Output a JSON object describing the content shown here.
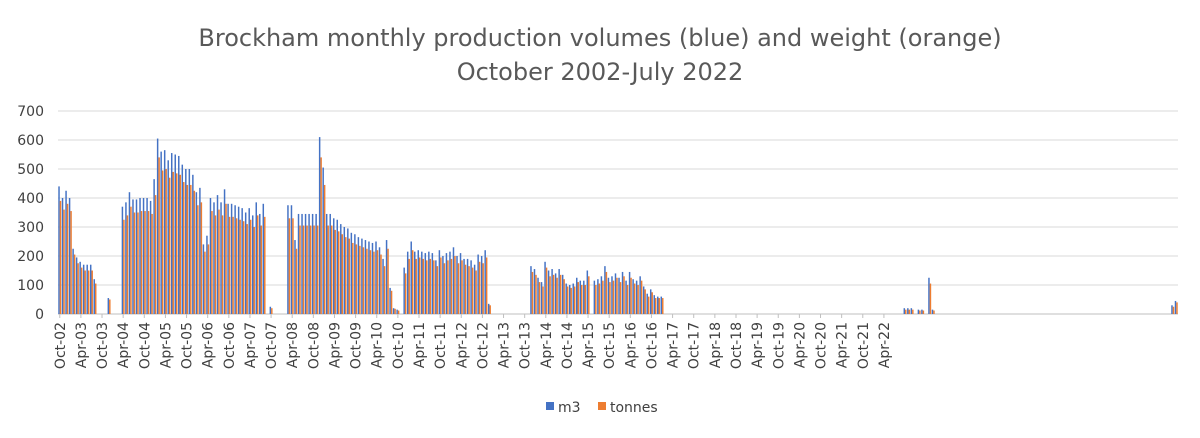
{
  "chart_data": {
    "type": "bar",
    "title": "Brockham monthly production volumes (blue) and weight (orange)",
    "subtitle": "October 2002-July 2022",
    "ylim": [
      0,
      700
    ],
    "yticks": [
      0,
      100,
      200,
      300,
      400,
      500,
      600,
      700
    ],
    "x_start": "Oct-02",
    "x_tick_labels": [
      "Oct-02",
      "Apr-03",
      "Oct-03",
      "Apr-04",
      "Oct-04",
      "Apr-05",
      "Oct-05",
      "Apr-06",
      "Oct-06",
      "Apr-07",
      "Oct-07",
      "Apr-08",
      "Oct-08",
      "Apr-09",
      "Oct-09",
      "Apr-10",
      "Oct-10",
      "Apr-11",
      "Oct-11",
      "Apr-12",
      "Oct-12",
      "Apr-13",
      "Oct-13",
      "Apr-14",
      "Oct-14",
      "Apr-15",
      "Oct-15",
      "Apr-16",
      "Oct-16",
      "Apr-17",
      "Oct-17",
      "Apr-18",
      "Oct-18",
      "Apr-19",
      "Oct-19",
      "Apr-20",
      "Oct-20",
      "Apr-21",
      "Oct-21",
      "Apr-22"
    ],
    "grid": true,
    "legend_position": "bottom",
    "colors": {
      "m3": "#4472C4",
      "tonnes": "#ED7D31",
      "grid": "#d9d9d9",
      "axis": "#bfbfbf"
    },
    "series": [
      {
        "name": "m3",
        "values": [
          440,
          400,
          425,
          400,
          225,
          195,
          180,
          170,
          170,
          170,
          120,
          0,
          0,
          0,
          55,
          0,
          0,
          0,
          370,
          385,
          420,
          395,
          395,
          400,
          400,
          400,
          390,
          465,
          605,
          560,
          565,
          530,
          555,
          550,
          545,
          515,
          500,
          500,
          480,
          420,
          435,
          240,
          270,
          400,
          385,
          410,
          385,
          430,
          380,
          380,
          375,
          370,
          365,
          350,
          365,
          340,
          385,
          345,
          380,
          0,
          25,
          0,
          0,
          0,
          0,
          375,
          375,
          255,
          345,
          345,
          345,
          345,
          345,
          345,
          610,
          505,
          345,
          345,
          330,
          325,
          310,
          300,
          295,
          280,
          275,
          265,
          260,
          255,
          250,
          245,
          250,
          230,
          190,
          255,
          90,
          20,
          15,
          0,
          160,
          215,
          250,
          215,
          220,
          215,
          210,
          215,
          210,
          185,
          220,
          200,
          210,
          215,
          230,
          200,
          210,
          190,
          190,
          185,
          170,
          205,
          200,
          220,
          35,
          0,
          0,
          0,
          0,
          0,
          0,
          0,
          0,
          0,
          0,
          0,
          165,
          155,
          125,
          110,
          180,
          150,
          155,
          140,
          155,
          135,
          105,
          100,
          105,
          125,
          115,
          115,
          150,
          0,
          115,
          120,
          130,
          165,
          125,
          130,
          140,
          125,
          145,
          115,
          145,
          120,
          115,
          130,
          95,
          70,
          85,
          65,
          60,
          60,
          0,
          0,
          0,
          0,
          0,
          0,
          0,
          0,
          0,
          0,
          0,
          0,
          0,
          0,
          0,
          0,
          0,
          0,
          0,
          0,
          0,
          0,
          0,
          0,
          0,
          0,
          0,
          0,
          0,
          0,
          0,
          0,
          0,
          0,
          0,
          0,
          0,
          0,
          0,
          0,
          0,
          0,
          0,
          0,
          0,
          0,
          0,
          0,
          0,
          0,
          0,
          0,
          0,
          0,
          0,
          0,
          0,
          0,
          0,
          0,
          0,
          0,
          0,
          0,
          0,
          0,
          0,
          0,
          20,
          20,
          20,
          0,
          15,
          15,
          0,
          125,
          15,
          0,
          0,
          0,
          0,
          0,
          0,
          0,
          0,
          0,
          0,
          0,
          0,
          0,
          0,
          0,
          0,
          0,
          0,
          0,
          0,
          0,
          0,
          0,
          0,
          0,
          0,
          0,
          0,
          0,
          0,
          0,
          0,
          0,
          0,
          0,
          0,
          0,
          0,
          0,
          0,
          0,
          0,
          0,
          0,
          0,
          0,
          0,
          0,
          0,
          0,
          0,
          0,
          0,
          0,
          0,
          0,
          0,
          0,
          0,
          0,
          0,
          0,
          0,
          0,
          0,
          0,
          0,
          30,
          45
        ],
        "tonnes_ratio_note": ""
      },
      {
        "name": "tonnes",
        "values": [
          390,
          360,
          380,
          355,
          205,
          175,
          160,
          150,
          150,
          150,
          105,
          0,
          0,
          0,
          50,
          0,
          0,
          0,
          325,
          340,
          370,
          350,
          350,
          355,
          355,
          355,
          345,
          410,
          540,
          495,
          500,
          470,
          490,
          485,
          480,
          455,
          445,
          445,
          425,
          375,
          385,
          215,
          240,
          355,
          340,
          360,
          340,
          380,
          335,
          335,
          330,
          325,
          320,
          310,
          325,
          300,
          340,
          305,
          335,
          0,
          20,
          0,
          0,
          0,
          0,
          330,
          330,
          225,
          305,
          305,
          305,
          305,
          305,
          305,
          540,
          445,
          305,
          305,
          290,
          285,
          275,
          265,
          260,
          245,
          240,
          235,
          230,
          225,
          220,
          215,
          220,
          205,
          165,
          225,
          80,
          18,
          12,
          0,
          140,
          190,
          220,
          190,
          195,
          190,
          185,
          190,
          185,
          165,
          195,
          175,
          185,
          190,
          200,
          175,
          185,
          170,
          165,
          160,
          150,
          180,
          175,
          195,
          30,
          0,
          0,
          0,
          0,
          0,
          0,
          0,
          0,
          0,
          0,
          0,
          145,
          135,
          110,
          95,
          160,
          130,
          135,
          125,
          135,
          120,
          95,
          90,
          95,
          110,
          100,
          100,
          130,
          0,
          100,
          105,
          115,
          145,
          110,
          115,
          125,
          110,
          130,
          100,
          125,
          105,
          100,
          115,
          85,
          60,
          75,
          55,
          55,
          55,
          0,
          0,
          0,
          0,
          0,
          0,
          0,
          0,
          0,
          0,
          0,
          0,
          0,
          0,
          0,
          0,
          0,
          0,
          0,
          0,
          0,
          0,
          0,
          0,
          0,
          0,
          0,
          0,
          0,
          0,
          0,
          0,
          0,
          0,
          0,
          0,
          0,
          0,
          0,
          0,
          0,
          0,
          0,
          0,
          0,
          0,
          0,
          0,
          0,
          0,
          0,
          0,
          0,
          0,
          0,
          0,
          0,
          0,
          0,
          0,
          0,
          0,
          0,
          0,
          0,
          0,
          0,
          0,
          15,
          15,
          15,
          0,
          12,
          12,
          0,
          105,
          12,
          0,
          0,
          0,
          0,
          0,
          0,
          0,
          0,
          0,
          0,
          0,
          0,
          0,
          0,
          0,
          0,
          0,
          0,
          0,
          0,
          0,
          0,
          0,
          0,
          0,
          0,
          0,
          0,
          0,
          0,
          0,
          0,
          0,
          0,
          0,
          0,
          0,
          0,
          0,
          0,
          0,
          0,
          0,
          0,
          0,
          0,
          0,
          0,
          0,
          0,
          0,
          0,
          0,
          0,
          0,
          0,
          0,
          0,
          0,
          0,
          0,
          0,
          0,
          0,
          0,
          0,
          0,
          25,
          40
        ]
      }
    ]
  }
}
